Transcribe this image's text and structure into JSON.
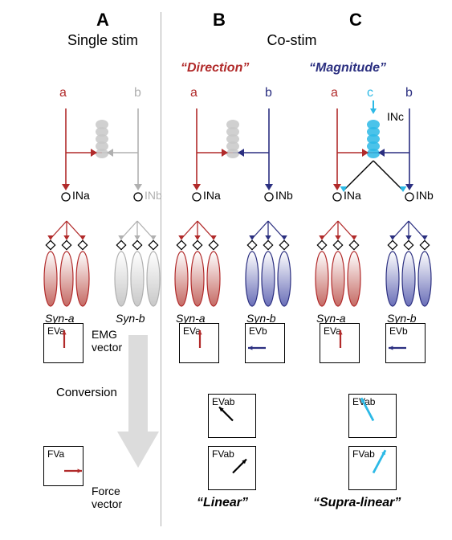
{
  "panels": {
    "A": {
      "letter": "A",
      "title": "Single stim"
    },
    "B": {
      "letter": "B",
      "title": "Co-stim"
    },
    "C": {
      "letter": "C"
    }
  },
  "mechanisms": {
    "direction": "“Direction”",
    "magnitude": "“Magnitude”",
    "linear": "“Linear”",
    "supra": "“Supra-linear”"
  },
  "circuit": {
    "a": "a",
    "b": "b",
    "c": "c",
    "INa": "INa",
    "INb": "INb",
    "INc": "INc"
  },
  "syn": {
    "a": "Syn-a",
    "b": "Syn-b"
  },
  "annot": {
    "emg": "EMG\nvector",
    "conv": "Conversion",
    "force": "Force\nvector"
  },
  "boxes": {
    "EVa": "EVa",
    "EVb": "EVb",
    "EVab": "EVab",
    "FVa": "FVa",
    "FVab": "FVab"
  },
  "colors": {
    "red": "#b12a2a",
    "redFill": "#c56a64",
    "blue": "#2b2f80",
    "blueFill": "#6a6fb8",
    "cyan": "#2cb9e6",
    "gray": "#c8c8c8",
    "grayStroke": "#b0b0b0",
    "black": "#000000",
    "bigArrow": "#dcdcdc",
    "white": "#ffffff"
  },
  "layout": {
    "colA": 52,
    "colB": 215,
    "colC": 390,
    "circuitTop": 135,
    "muscleTop": 275,
    "synY": 388,
    "row1BoxY": 402,
    "row2BoxY": 490,
    "row3BoxY": 555,
    "box1W": 50,
    "box1H": 50,
    "box2W": 60,
    "box2H": 55
  },
  "vectors": {
    "EVa_red": {
      "angle": -90,
      "len": 22,
      "color": "#b12a2a"
    },
    "EVb_blue": {
      "angle": 180,
      "len": 22,
      "color": "#2b2f80"
    },
    "EVab_blackNW": {
      "angle": -135,
      "len": 24,
      "color": "#000000"
    },
    "EVab_cyan": {
      "angle": -118,
      "len": 32,
      "color": "#2cb9e6"
    },
    "FVa_redE": {
      "angle": 0,
      "len": 22,
      "color": "#b12a2a"
    },
    "FVab_blackNE": {
      "angle": -45,
      "len": 24,
      "color": "#000000"
    },
    "FVab_cyan": {
      "angle": -62,
      "len": 32,
      "color": "#2cb9e6"
    }
  }
}
